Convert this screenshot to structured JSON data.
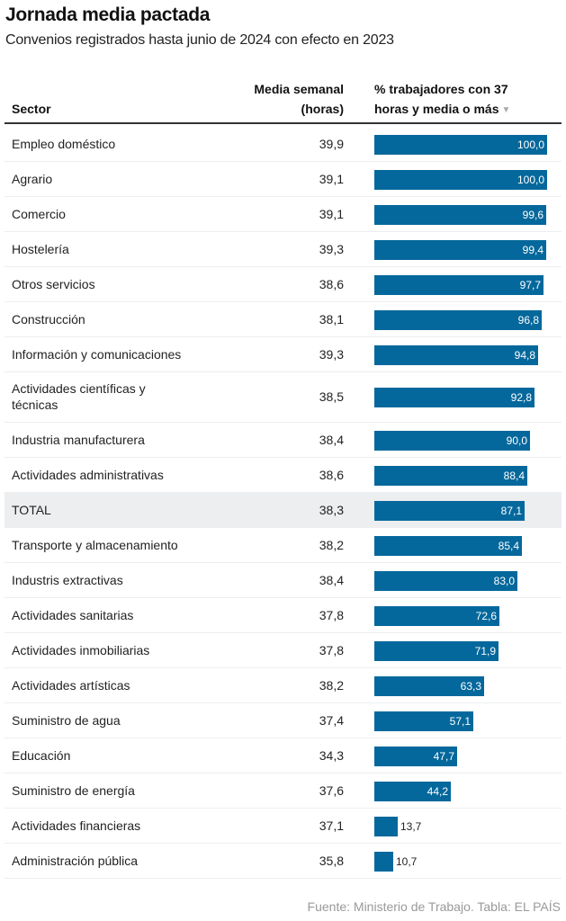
{
  "header": {
    "title": "Jornada media pactada",
    "subtitle": "Convenios registrados hasta junio de 2024 con efecto en 2023"
  },
  "table": {
    "columns": {
      "sector": "Sector",
      "media_line1": "Media semanal",
      "media_line2": "(horas)",
      "pct_line1": "% trabajadores con 37",
      "pct_line2": "horas y media o más",
      "sort_icon": "▼"
    }
  },
  "colors": {
    "bar": "#05689c",
    "total_row": "#eceeef"
  },
  "chart_data": {
    "type": "table",
    "title": "Jornada media pactada",
    "subtitle": "Convenios registrados hasta junio de 2024 con efecto en 2023",
    "columns": [
      "Sector",
      "Media semanal (horas)",
      "% trabajadores con 37 horas y media o más"
    ],
    "sorted_by": "% trabajadores con 37 horas y media o más",
    "sort_order": "descending",
    "bar_max": 100,
    "rows": [
      {
        "sector": "Empleo doméstico",
        "media": "39,9",
        "pct": 100.0,
        "pct_label": "100,0"
      },
      {
        "sector": "Agrario",
        "media": "39,1",
        "pct": 100.0,
        "pct_label": "100,0"
      },
      {
        "sector": "Comercio",
        "media": "39,1",
        "pct": 99.6,
        "pct_label": "99,6"
      },
      {
        "sector": "Hostelería",
        "media": "39,3",
        "pct": 99.4,
        "pct_label": "99,4"
      },
      {
        "sector": "Otros servicios",
        "media": "38,6",
        "pct": 97.7,
        "pct_label": "97,7"
      },
      {
        "sector": "Construcción",
        "media": "38,1",
        "pct": 96.8,
        "pct_label": "96,8"
      },
      {
        "sector": "Información y comunicaciones",
        "media": "39,3",
        "pct": 94.8,
        "pct_label": "94,8"
      },
      {
        "sector": "Actividades científicas y técnicas",
        "media": "38,5",
        "pct": 92.8,
        "pct_label": "92,8",
        "wrap": true
      },
      {
        "sector": "Industria manufacturera",
        "media": "38,4",
        "pct": 90.0,
        "pct_label": "90,0"
      },
      {
        "sector": "Actividades administrativas",
        "media": "38,6",
        "pct": 88.4,
        "pct_label": "88,4"
      },
      {
        "sector": "TOTAL",
        "media": "38,3",
        "pct": 87.1,
        "pct_label": "87,1",
        "highlight": true
      },
      {
        "sector": "Transporte y almacenamiento",
        "media": "38,2",
        "pct": 85.4,
        "pct_label": "85,4"
      },
      {
        "sector": "Industris extractivas",
        "media": "38,4",
        "pct": 83.0,
        "pct_label": "83,0"
      },
      {
        "sector": "Actividades sanitarias",
        "media": "37,8",
        "pct": 72.6,
        "pct_label": "72,6"
      },
      {
        "sector": "Actividades inmobiliarias",
        "media": "37,8",
        "pct": 71.9,
        "pct_label": "71,9"
      },
      {
        "sector": "Actividades artísticas",
        "media": "38,2",
        "pct": 63.3,
        "pct_label": "63,3"
      },
      {
        "sector": "Suministro de agua",
        "media": "37,4",
        "pct": 57.1,
        "pct_label": "57,1"
      },
      {
        "sector": "Educación",
        "media": "34,3",
        "pct": 47.7,
        "pct_label": "47,7"
      },
      {
        "sector": "Suministro de energía",
        "media": "37,6",
        "pct": 44.2,
        "pct_label": "44,2"
      },
      {
        "sector": "Actividades financieras",
        "media": "37,1",
        "pct": 13.7,
        "pct_label": "13,7"
      },
      {
        "sector": "Administración pública",
        "media": "35,8",
        "pct": 10.7,
        "pct_label": "10,7"
      }
    ]
  },
  "footer": {
    "source": "Fuente: Ministerio de Trabajo. Tabla: EL PAÍS"
  }
}
